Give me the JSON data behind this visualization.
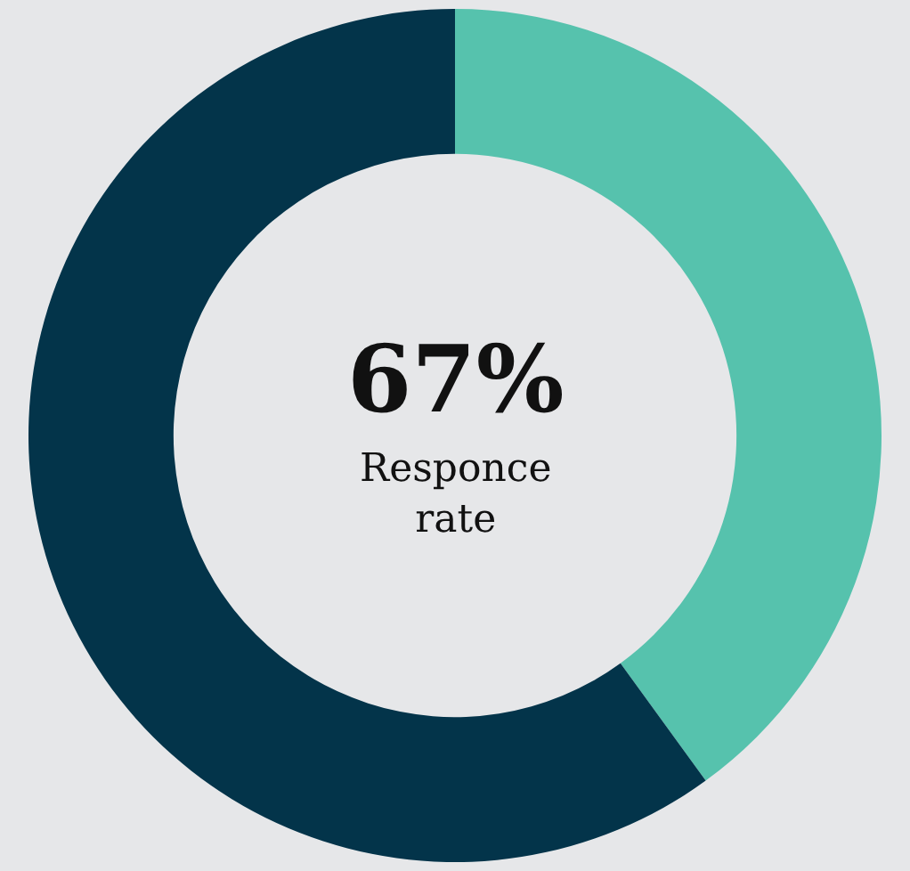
{
  "chart_data": {
    "type": "donut",
    "categories": [
      null,
      null
    ],
    "values": [
      40,
      60
    ],
    "colors": [
      "#56c2ad",
      "#03344a"
    ],
    "annotations": [
      "67%",
      "Responce rate"
    ],
    "legend": false
  }
}
